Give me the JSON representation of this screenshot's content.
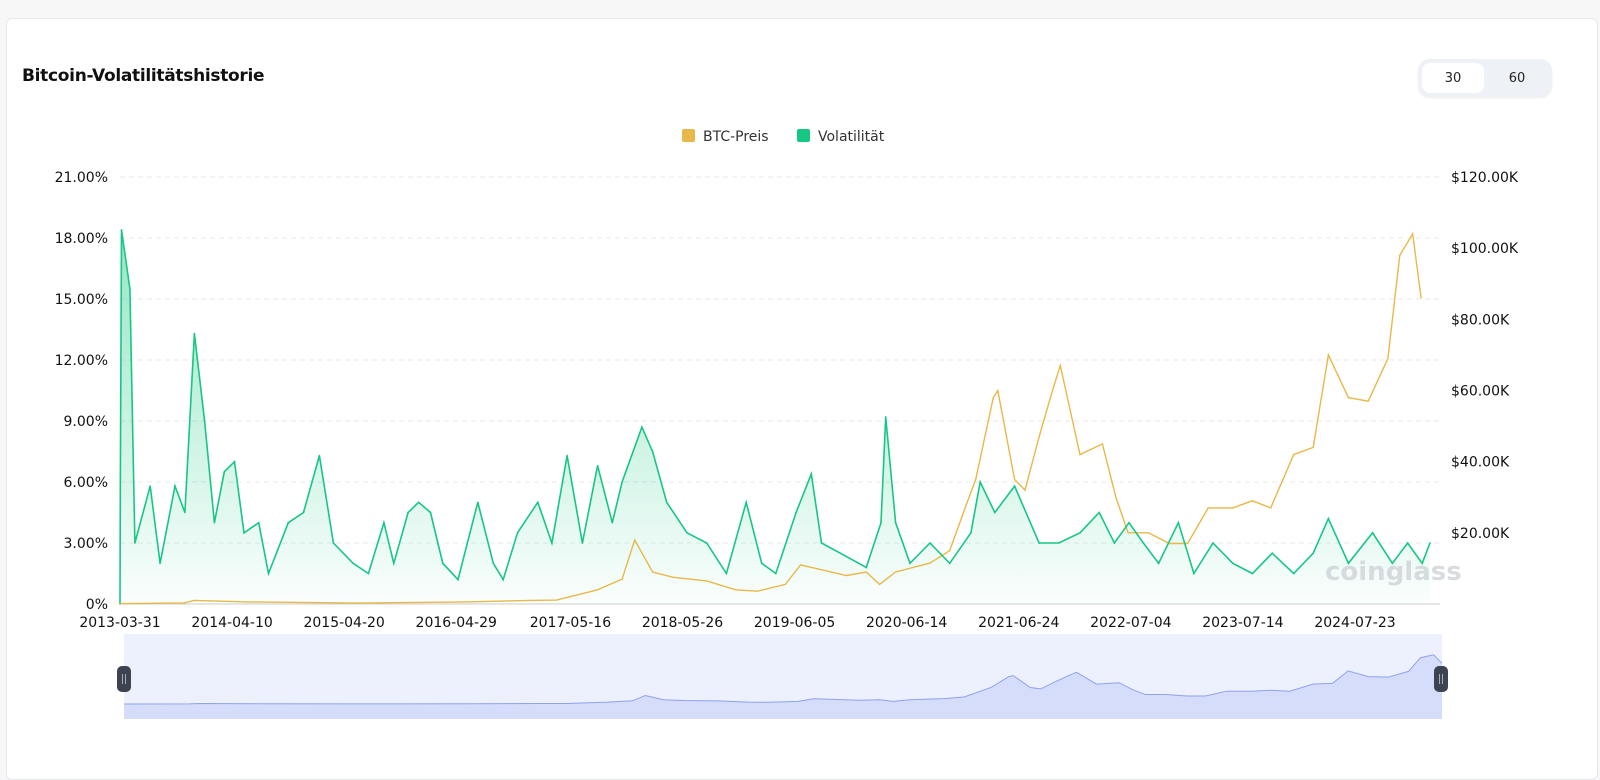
{
  "header": {
    "title": "Bitcoin-Volatilitätshistorie"
  },
  "period_toggle": {
    "options": [
      "30",
      "60"
    ],
    "selected": "30"
  },
  "watermark": "coinglass",
  "chart_data": {
    "type": "line",
    "title": "",
    "legend": {
      "position": "top-center",
      "entries": [
        "BTC-Preis",
        "Volatilität"
      ]
    },
    "colors": {
      "BTC-Preis": "#e8b84a",
      "Volatilität": "#16c784"
    },
    "x_tick_labels": [
      "2013-03-31",
      "2014-04-10",
      "2015-04-20",
      "2016-04-29",
      "2017-05-16",
      "2018-05-26",
      "2019-06-05",
      "2020-06-14",
      "2021-06-24",
      "2022-07-04",
      "2023-07-14",
      "2024-07-23"
    ],
    "y_left": {
      "ticks": [
        "0%",
        "3.00%",
        "6.00%",
        "9.00%",
        "12.00%",
        "15.00%",
        "18.00%",
        "21.00%"
      ],
      "range": [
        0,
        21
      ],
      "unit": "%"
    },
    "y_right": {
      "ticks": [
        "$20.00K",
        "$40.00K",
        "$60.00K",
        "$80.00K",
        "$100.00K",
        "$120.00K"
      ],
      "range": [
        0,
        120
      ],
      "unit": "K USD"
    },
    "grid": true,
    "series": [
      {
        "name": "Volatilität",
        "axis": "left",
        "area": true,
        "points": [
          [
            "2013-03-31",
            0
          ],
          [
            "2013-04-01",
            5.5
          ],
          [
            "2013-04-05",
            18.4
          ],
          [
            "2013-05-03",
            15.5
          ],
          [
            "2013-05-20",
            3
          ],
          [
            "2013-07-10",
            5.8
          ],
          [
            "2013-08-12",
            2
          ],
          [
            "2013-10-01",
            5.8
          ],
          [
            "2013-11-03",
            4.5
          ],
          [
            "2013-12-05",
            13.3
          ],
          [
            "2014-01-08",
            9
          ],
          [
            "2014-02-10",
            4
          ],
          [
            "2014-03-15",
            6.5
          ],
          [
            "2014-04-18",
            7
          ],
          [
            "2014-05-20",
            3.5
          ],
          [
            "2014-07-08",
            4
          ],
          [
            "2014-08-10",
            1.5
          ],
          [
            "2014-10-15",
            4
          ],
          [
            "2014-12-05",
            4.5
          ],
          [
            "2015-01-27",
            7.3
          ],
          [
            "2015-03-15",
            3
          ],
          [
            "2015-05-20",
            2
          ],
          [
            "2015-07-10",
            1.5
          ],
          [
            "2015-08-31",
            4
          ],
          [
            "2015-10-03",
            2
          ],
          [
            "2015-11-20",
            4.5
          ],
          [
            "2015-12-25",
            5
          ],
          [
            "2016-02-03",
            4.5
          ],
          [
            "2016-03-15",
            2
          ],
          [
            "2016-05-05",
            1.2
          ],
          [
            "2016-07-10",
            5
          ],
          [
            "2016-08-31",
            2
          ],
          [
            "2016-10-03",
            1.2
          ],
          [
            "2016-11-20",
            3.5
          ],
          [
            "2017-01-27",
            5
          ],
          [
            "2017-03-15",
            3
          ],
          [
            "2017-05-05",
            7.3
          ],
          [
            "2017-06-25",
            3
          ],
          [
            "2017-08-15",
            6.8
          ],
          [
            "2017-10-03",
            4
          ],
          [
            "2017-11-05",
            6
          ],
          [
            "2018-01-10",
            8.7
          ],
          [
            "2018-02-15",
            7.5
          ],
          [
            "2018-04-03",
            5
          ],
          [
            "2018-06-10",
            3.5
          ],
          [
            "2018-08-15",
            3
          ],
          [
            "2018-10-20",
            1.5
          ],
          [
            "2018-12-25",
            5
          ],
          [
            "2019-02-15",
            2
          ],
          [
            "2019-04-03",
            1.5
          ],
          [
            "2019-06-10",
            4.5
          ],
          [
            "2019-07-31",
            6.4
          ],
          [
            "2019-09-03",
            3
          ],
          [
            "2019-11-05",
            2.5
          ],
          [
            "2020-01-31",
            1.8
          ],
          [
            "2020-03-20",
            4
          ],
          [
            "2020-04-05",
            9.2
          ],
          [
            "2020-05-08",
            4
          ],
          [
            "2020-06-25",
            2
          ],
          [
            "2020-08-31",
            3
          ],
          [
            "2020-11-05",
            2
          ],
          [
            "2021-01-15",
            3.5
          ],
          [
            "2021-02-15",
            6
          ],
          [
            "2021-04-05",
            4.5
          ],
          [
            "2021-06-10",
            5.8
          ],
          [
            "2021-08-31",
            3
          ],
          [
            "2021-11-05",
            3
          ],
          [
            "2022-01-15",
            3.5
          ],
          [
            "2022-03-20",
            4.5
          ],
          [
            "2022-05-10",
            3
          ],
          [
            "2022-06-28",
            4
          ],
          [
            "2022-08-15",
            3
          ],
          [
            "2022-10-05",
            2
          ],
          [
            "2022-12-10",
            4
          ],
          [
            "2023-01-31",
            1.5
          ],
          [
            "2023-04-05",
            3
          ],
          [
            "2023-06-10",
            2
          ],
          [
            "2023-08-15",
            1.5
          ],
          [
            "2023-10-20",
            2.5
          ],
          [
            "2023-12-31",
            1.5
          ],
          [
            "2024-03-05",
            2.5
          ],
          [
            "2024-04-25",
            4.2
          ],
          [
            "2024-07-01",
            2
          ],
          [
            "2024-09-20",
            3.5
          ],
          [
            "2024-11-25",
            2
          ],
          [
            "2025-01-15",
            3
          ],
          [
            "2025-03-05",
            2
          ],
          [
            "2025-03-31",
            3
          ]
        ]
      },
      {
        "name": "BTC-Preis",
        "axis": "right",
        "area": false,
        "points": [
          [
            "2013-03-31",
            0.1
          ],
          [
            "2013-11-01",
            0.3
          ],
          [
            "2013-12-05",
            1.0
          ],
          [
            "2014-06-01",
            0.6
          ],
          [
            "2015-06-01",
            0.25
          ],
          [
            "2016-06-01",
            0.6
          ],
          [
            "2017-01-01",
            1.0
          ],
          [
            "2017-03-31",
            1.1
          ],
          [
            "2017-08-15",
            4
          ],
          [
            "2017-11-05",
            7
          ],
          [
            "2017-12-17",
            18
          ],
          [
            "2018-02-15",
            9
          ],
          [
            "2018-04-25",
            7.5
          ],
          [
            "2018-08-15",
            6.5
          ],
          [
            "2018-11-20",
            4
          ],
          [
            "2019-01-31",
            3.6
          ],
          [
            "2019-05-05",
            5.5
          ],
          [
            "2019-06-25",
            11
          ],
          [
            "2019-08-15",
            10
          ],
          [
            "2019-11-25",
            8
          ],
          [
            "2020-01-31",
            9
          ],
          [
            "2020-03-15",
            5.5
          ],
          [
            "2020-05-08",
            9
          ],
          [
            "2020-08-31",
            11.5
          ],
          [
            "2020-11-05",
            15
          ],
          [
            "2020-12-31",
            28
          ],
          [
            "2021-01-31",
            35
          ],
          [
            "2021-03-31",
            58
          ],
          [
            "2021-04-15",
            60
          ],
          [
            "2021-06-10",
            35
          ],
          [
            "2021-07-15",
            32
          ],
          [
            "2021-08-31",
            47
          ],
          [
            "2021-10-15",
            60
          ],
          [
            "2021-11-10",
            67
          ],
          [
            "2022-01-15",
            42
          ],
          [
            "2022-03-31",
            45
          ],
          [
            "2022-05-15",
            30
          ],
          [
            "2022-06-25",
            20
          ],
          [
            "2022-09-01",
            20
          ],
          [
            "2022-11-10",
            17
          ],
          [
            "2023-01-10",
            17
          ],
          [
            "2023-03-20",
            27
          ],
          [
            "2023-06-10",
            27
          ],
          [
            "2023-08-15",
            29
          ],
          [
            "2023-10-15",
            27
          ],
          [
            "2023-12-31",
            42
          ],
          [
            "2024-03-05",
            44
          ],
          [
            "2024-04-25",
            70
          ],
          [
            "2024-07-01",
            58
          ],
          [
            "2024-09-05",
            57
          ],
          [
            "2024-11-10",
            69
          ],
          [
            "2024-12-20",
            98
          ],
          [
            "2025-02-01",
            104
          ],
          [
            "2025-03-01",
            86
          ]
        ]
      }
    ]
  }
}
